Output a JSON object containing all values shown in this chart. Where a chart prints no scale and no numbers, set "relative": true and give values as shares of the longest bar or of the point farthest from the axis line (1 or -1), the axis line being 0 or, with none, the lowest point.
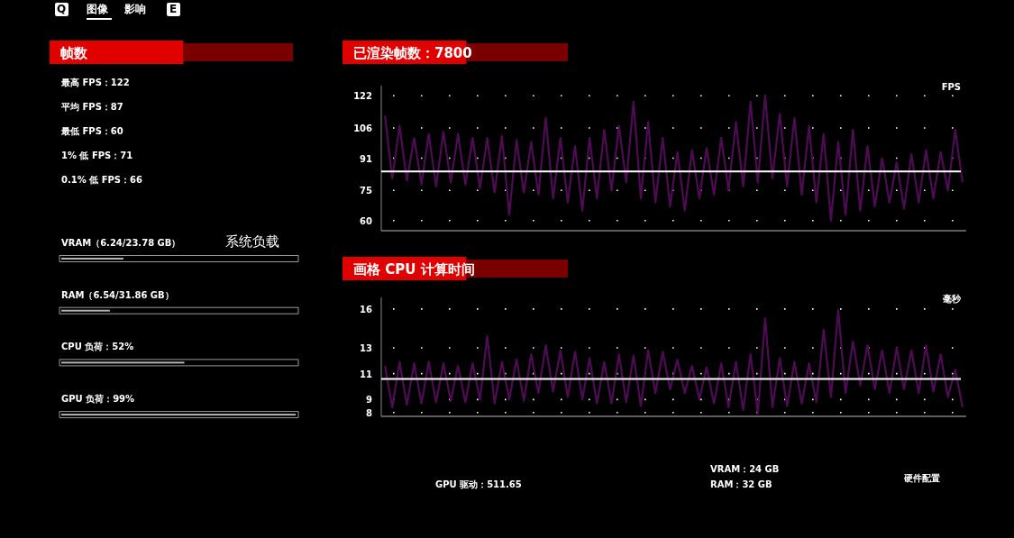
{
  "chart_data": [
    {
      "type": "other",
      "annotations": [
        "Q",
        "图像",
        "影响",
        "E"
      ]
    },
    {
      "type": "other",
      "title": "帧数",
      "annotations": [
        "最高 FPS：122",
        "平均 FPS：87",
        "最低 FPS：60",
        "1% 低 FPS：71",
        "0.1% 低 FPS：66"
      ]
    },
    {
      "type": "bar",
      "orientation": "horizontal",
      "relative": true,
      "title": "系统负载",
      "categories": [
        "VRAM（6.24/23.78 GB）",
        "RAM（6.54/31.86 GB）",
        "CPU 负荷：52%",
        "GPU 负荷：99%"
      ],
      "values": [
        0.265,
        0.207,
        0.525,
        1
      ],
      "color": "#b4b4b4"
    },
    {
      "type": "line",
      "title": "已渲染帧数：7800",
      "ylabel": "FPS",
      "color": "#4f0c55",
      "line_style": "solid",
      "grid": "y",
      "categories": [
        null,
        null,
        null,
        null,
        null,
        null,
        null,
        null,
        null,
        null,
        null,
        null,
        null,
        null,
        null,
        null,
        null,
        null,
        null,
        null,
        null,
        null,
        null,
        null,
        null,
        null,
        null,
        null,
        null,
        null,
        null,
        null,
        null,
        null,
        null,
        null,
        null,
        null,
        null,
        null,
        null,
        null,
        null,
        null,
        null,
        null,
        null,
        null,
        null,
        null,
        null,
        null,
        null,
        null,
        null,
        null,
        null,
        null,
        null,
        null,
        null,
        null,
        null,
        null,
        null,
        null,
        null,
        null,
        null,
        null,
        null,
        null,
        null,
        null,
        null,
        null,
        null,
        null,
        null,
        null
      ],
      "values": [
        112,
        81,
        107,
        80,
        101,
        78,
        103,
        77,
        104,
        79,
        103,
        78,
        101,
        76,
        101,
        74,
        102,
        63,
        100,
        74,
        99,
        73,
        111,
        71,
        101,
        69,
        97,
        65,
        101,
        71,
        105,
        75,
        107,
        79,
        119,
        71,
        109,
        69,
        101,
        67,
        94,
        65,
        95,
        71,
        96,
        73,
        101,
        75,
        109,
        77,
        119,
        79,
        122,
        81,
        113,
        77,
        111,
        73,
        107,
        69,
        103,
        60,
        99,
        63,
        105,
        65,
        97,
        67,
        91,
        69,
        89,
        66,
        93,
        69,
        95,
        71,
        94,
        75,
        105,
        79
      ],
      "ylim": [
        55,
        127
      ],
      "yticks": [
        60,
        75,
        91,
        106,
        122
      ],
      "ref_lines": [
        {
          "axis": "y",
          "value": 84.4,
          "color": "#ffffff"
        }
      ]
    },
    {
      "type": "line",
      "title": "画格 CPU 计算时间",
      "ylabel": "毫秒",
      "color": "#4f0c55",
      "line_style": "solid",
      "grid": "y",
      "categories": [
        null,
        null,
        null,
        null,
        null,
        null,
        null,
        null,
        null,
        null,
        null,
        null,
        null,
        null,
        null,
        null,
        null,
        null,
        null,
        null,
        null,
        null,
        null,
        null,
        null,
        null,
        null,
        null,
        null,
        null,
        null,
        null,
        null,
        null,
        null,
        null,
        null,
        null,
        null,
        null,
        null,
        null,
        null,
        null,
        null,
        null,
        null,
        null,
        null,
        null,
        null,
        null,
        null,
        null,
        null,
        null,
        null,
        null,
        null,
        null,
        null,
        null,
        null,
        null,
        null,
        null,
        null,
        null,
        null,
        null,
        null,
        null,
        null,
        null,
        null,
        null,
        null,
        null,
        null,
        null
      ],
      "values": [
        11.6,
        8.4,
        11.9,
        8.6,
        11.8,
        8.7,
        11.9,
        8.8,
        11.8,
        8.9,
        11.6,
        8.8,
        11.8,
        9.0,
        13.9,
        8.7,
        11.9,
        9.0,
        12.1,
        8.9,
        12.5,
        9.5,
        13.2,
        9.6,
        12.8,
        9.2,
        12.7,
        9.0,
        12.2,
        8.7,
        11.9,
        8.7,
        12.5,
        8.8,
        12.4,
        8.5,
        12.8,
        9.5,
        12.7,
        9.8,
        12.1,
        9.5,
        11.6,
        9.0,
        11.5,
        8.7,
        11.8,
        8.4,
        11.9,
        8.2,
        12.5,
        7.9,
        15.3,
        8.4,
        12.2,
        8.5,
        11.9,
        8.7,
        11.8,
        8.8,
        14.4,
        9.2,
        15.9,
        9.5,
        13.5,
        10.1,
        13.2,
        9.8,
        12.8,
        9.5,
        13.0,
        9.8,
        12.8,
        9.5,
        13.2,
        9.6,
        12.5,
        9.2,
        11.3,
        8.4
      ],
      "ylim": [
        7.7,
        16.9
      ],
      "yticks": [
        8,
        9,
        11,
        13,
        16
      ],
      "ref_lines": [
        {
          "axis": "y",
          "value": 10.6,
          "color": "#ffffff"
        }
      ]
    },
    {
      "type": "other",
      "annotations": [
        "GPU 驱动：511.65",
        "VRAM：24 GB",
        "RAM：32 GB",
        "硬件配置"
      ]
    }
  ]
}
